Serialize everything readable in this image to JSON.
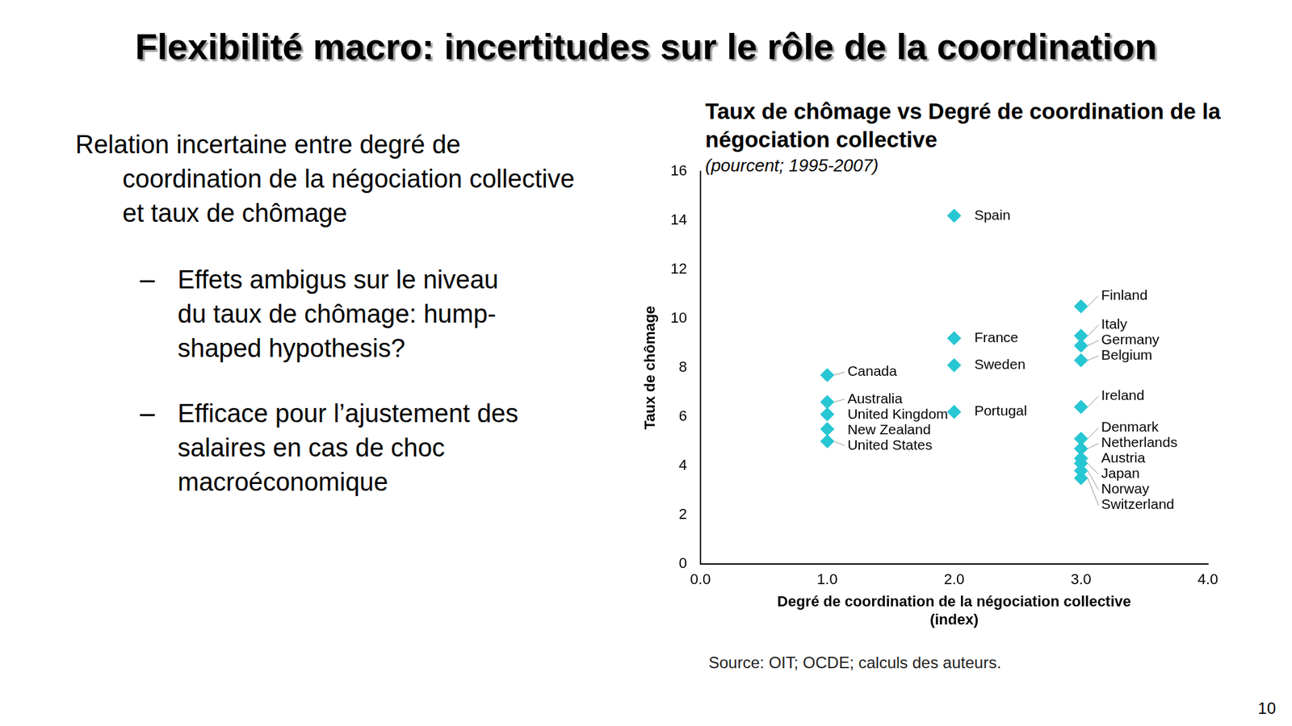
{
  "slide": {
    "title": "Flexibilité macro: incertitudes sur le rôle de la coordination",
    "text": "Relation incertaine entre degré de coordination de la négociation collective et taux de chômage",
    "bullets": [
      "Effets ambigus sur le niveau du taux de chômage: hump-shaped hypothesis?",
      "Efficace pour l’ajustement des salaires en cas de choc macroéconomique"
    ],
    "page": 10
  },
  "chart_data": {
    "type": "scatter",
    "title": "Taux de chômage vs Degré de coordination de la négociation collective",
    "subtitle": "(pourcent; 1995-2007)",
    "x_label": [
      "Degré de coordination de la négociation collective",
      "(index)"
    ],
    "y_label": "Taux de chômage",
    "source": "Source: OIT; OCDE; calculs des auteurs.",
    "labels": [
      "Canada",
      "Australia",
      "United Kingdom",
      "New Zealand",
      "United States",
      "Spain",
      "France",
      "Sweden",
      "Portugal",
      "Finland",
      "Italy",
      "Germany",
      "Belgium",
      "Ireland",
      "Denmark",
      "Netherlands",
      "Austria",
      "Japan",
      "Norway",
      "Switzerland"
    ],
    "x": [
      1,
      1,
      1,
      1,
      1,
      2,
      2,
      2,
      2,
      3,
      3,
      3,
      3,
      3,
      3,
      3,
      3,
      3,
      3,
      3
    ],
    "values": [
      7.7,
      6.6,
      6.1,
      5.5,
      5.0,
      14.2,
      9.2,
      8.1,
      6.2,
      10.5,
      9.3,
      8.9,
      8.3,
      6.4,
      5.1,
      4.7,
      4.3,
      4.1,
      3.8,
      3.5
    ],
    "color": "#27c6d3",
    "marker": "diamond",
    "data_labels": true,
    "xlim": [
      0,
      4
    ],
    "xticks": [
      {
        "value": 0,
        "label": "0.0"
      },
      {
        "value": 1,
        "label": "1.0"
      },
      {
        "value": 2,
        "label": "2.0"
      },
      {
        "value": 3,
        "label": "3.0"
      },
      {
        "value": 4,
        "label": "4.0"
      }
    ],
    "ylim": [
      0,
      16
    ],
    "yticks": [
      0,
      2,
      4,
      6,
      8,
      10,
      12,
      14,
      16
    ],
    "grid": false
  }
}
